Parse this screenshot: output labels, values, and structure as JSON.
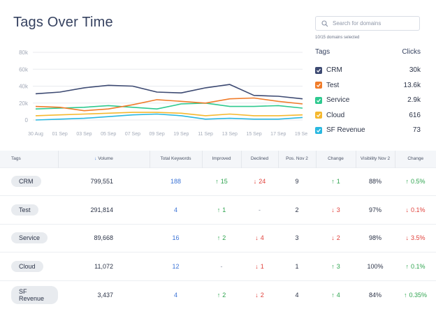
{
  "page": {
    "title": "Tags Over Time"
  },
  "search": {
    "placeholder": "Search for domains",
    "selected_text": "10/15 domains selected"
  },
  "legend": {
    "header_tags": "Tags",
    "header_clicks": "Clicks",
    "items": [
      {
        "name": "CRM",
        "clicks": "30k",
        "color": "#3d4a72"
      },
      {
        "name": "Test",
        "clicks": "13.6k",
        "color": "#f07c2a"
      },
      {
        "name": "Service",
        "clicks": "2.9k",
        "color": "#2ec98f"
      },
      {
        "name": "Cloud",
        "clicks": "616",
        "color": "#f5b82e"
      },
      {
        "name": "SF Revenue",
        "clicks": "73",
        "color": "#2ab8e0"
      }
    ]
  },
  "chart_data": {
    "type": "line",
    "x": [
      "30 Aug",
      "01 Sep",
      "03 Sep",
      "05 Sep",
      "07 Sep",
      "09 Sep",
      "19 Sep",
      "11 Sep",
      "13 Sep",
      "15 Sep",
      "17 Sep",
      "19 Sep"
    ],
    "y_ticks": [
      "0",
      "20k",
      "40k",
      "60k",
      "80k"
    ],
    "ylim": [
      0,
      80000
    ],
    "grid": true,
    "series": [
      {
        "name": "CRM",
        "color": "#3d4a72",
        "values": [
          31000,
          33000,
          38000,
          41000,
          40000,
          33000,
          32000,
          38000,
          42000,
          29000,
          28000,
          25000
        ]
      },
      {
        "name": "Test",
        "color": "#f07c2a",
        "values": [
          16000,
          15000,
          11000,
          13000,
          18000,
          24000,
          22000,
          20000,
          25000,
          26000,
          22000,
          19000
        ]
      },
      {
        "name": "Service",
        "color": "#2ec98f",
        "values": [
          13000,
          14000,
          15000,
          17000,
          15000,
          13000,
          19000,
          20000,
          16000,
          16000,
          17000,
          14000
        ]
      },
      {
        "name": "Cloud",
        "color": "#f5b82e",
        "values": [
          5000,
          6000,
          7000,
          8000,
          9000,
          9000,
          8000,
          5000,
          7000,
          5000,
          5000,
          6000
        ]
      },
      {
        "name": "SF Revenue",
        "color": "#2ab8e0",
        "values": [
          0,
          1000,
          2000,
          4000,
          6000,
          7000,
          5000,
          1000,
          2000,
          1000,
          1000,
          3000
        ]
      }
    ]
  },
  "table": {
    "headers": [
      "Tags",
      "Volume",
      "Total Keywords",
      "Improved",
      "Declined",
      "Pos. Nov 2",
      "Change",
      "Visibility Nov 2",
      "Change"
    ],
    "rows": [
      {
        "tag": "CRM",
        "volume": "799,551",
        "keywords": "188",
        "improved": "15",
        "declined": "24",
        "pos": "9",
        "change": "1",
        "change_dir": "up",
        "visibility": "88%",
        "vchange": "0.5%",
        "vchange_dir": "up"
      },
      {
        "tag": "Test",
        "volume": "291,814",
        "keywords": "4",
        "improved": "1",
        "declined": "-",
        "pos": "2",
        "change": "3",
        "change_dir": "down",
        "visibility": "97%",
        "vchange": "0.1%",
        "vchange_dir": "down"
      },
      {
        "tag": "Service",
        "volume": "89,668",
        "keywords": "16",
        "improved": "2",
        "declined": "4",
        "pos": "3",
        "change": "2",
        "change_dir": "down",
        "visibility": "98%",
        "vchange": "3.5%",
        "vchange_dir": "down"
      },
      {
        "tag": "Cloud",
        "volume": "11,072",
        "keywords": "12",
        "improved": "-",
        "declined": "1",
        "pos": "1",
        "change": "3",
        "change_dir": "up",
        "visibility": "100%",
        "vchange": "0.1%",
        "vchange_dir": "up"
      },
      {
        "tag": "SF Revenue",
        "volume": "3,437",
        "keywords": "4",
        "improved": "2",
        "declined": "2",
        "pos": "4",
        "change": "4",
        "change_dir": "up",
        "visibility": "84%",
        "vchange": "0.35%",
        "vchange_dir": "up"
      }
    ]
  }
}
